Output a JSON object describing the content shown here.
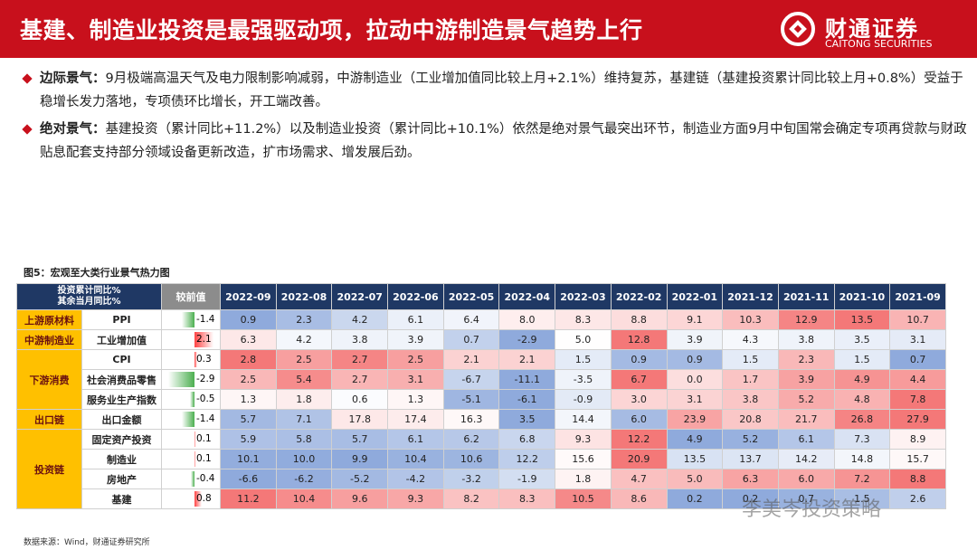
{
  "header": {
    "title": "基建、制造业投资是最强驱动项，拉动中游制造景气趋势上行",
    "logo_cn": "财通证券",
    "logo_en": "CAITONG SECURITIES"
  },
  "bullets": [
    {
      "label": "边际景气：",
      "text": "9月极端高温天气及电力限制影响减弱，中游制造业（工业增加值同比较上月+2.1%）维持复苏，基建链（基建投资累计同比较上月+0.8%）受益于稳增长发力落地，专项债环比增长，开工端改善。"
    },
    {
      "label": "绝对景气：",
      "text": "基建投资（累计同比+11.2%）以及制造业投资（累计同比+10.1%）依然是绝对景气最突出环节，制造业方面9月中旬国常会确定专项再贷款与财政贴息配套支持部分领域设备更新改造，扩市场需求、增发展后劲。"
    }
  ],
  "figure_title": "图5：宏观至大类行业景气热力图",
  "table": {
    "header_label": [
      "投资累计同比%",
      "其余当月同比%"
    ],
    "change_label": "较前值",
    "months": [
      "2022-09",
      "2022-08",
      "2022-07",
      "2022-06",
      "2022-05",
      "2022-04",
      "2022-03",
      "2022-02",
      "2022-01",
      "2021-12",
      "2021-11",
      "2021-10",
      "2021-09"
    ],
    "groups": [
      {
        "name": "上游原材料",
        "rows": [
          {
            "indicator": "PPI",
            "change": "-1.4",
            "values": [
              "0.9",
              "2.3",
              "4.2",
              "6.1",
              "6.4",
              "8.0",
              "8.3",
              "8.8",
              "9.1",
              "10.3",
              "12.9",
              "13.5",
              "10.7"
            ]
          }
        ]
      },
      {
        "name": "中游制造业",
        "rows": [
          {
            "indicator": "工业增加值",
            "change": "2.1",
            "values": [
              "6.3",
              "4.2",
              "3.8",
              "3.9",
              "0.7",
              "-2.9",
              "5.0",
              "12.8",
              "3.9",
              "4.3",
              "3.8",
              "3.5",
              "3.1"
            ]
          }
        ]
      },
      {
        "name": "下游消费",
        "rows": [
          {
            "indicator": "CPI",
            "change": "0.3",
            "values": [
              "2.8",
              "2.5",
              "2.7",
              "2.5",
              "2.1",
              "2.1",
              "1.5",
              "0.9",
              "0.9",
              "1.5",
              "2.3",
              "1.5",
              "0.7"
            ]
          },
          {
            "indicator": "社会消费品零售",
            "change": "-2.9",
            "values": [
              "2.5",
              "5.4",
              "2.7",
              "3.1",
              "-6.7",
              "-11.1",
              "-3.5",
              "6.7",
              "0.0",
              "1.7",
              "3.9",
              "4.9",
              "4.4"
            ]
          },
          {
            "indicator": "服务业生产指数",
            "change": "-0.5",
            "values": [
              "1.3",
              "1.8",
              "0.6",
              "1.3",
              "-5.1",
              "-6.1",
              "-0.9",
              "3.0",
              "3.1",
              "3.8",
              "5.2",
              "4.8",
              "7.8"
            ]
          }
        ]
      },
      {
        "name": "出口链",
        "rows": [
          {
            "indicator": "出口金额",
            "change": "-1.4",
            "values": [
              "5.7",
              "7.1",
              "17.8",
              "17.4",
              "16.3",
              "3.5",
              "14.4",
              "6.0",
              "23.9",
              "20.8",
              "21.7",
              "26.8",
              "27.9"
            ]
          }
        ]
      },
      {
        "name": "投资链",
        "rows": [
          {
            "indicator": "固定资产投资",
            "change": "0.1",
            "values": [
              "5.9",
              "5.8",
              "5.7",
              "6.1",
              "6.2",
              "6.8",
              "9.3",
              "12.2",
              "4.9",
              "5.2",
              "6.1",
              "7.3",
              "8.9"
            ]
          },
          {
            "indicator": "制造业",
            "change": "0.1",
            "values": [
              "10.1",
              "10.0",
              "9.9",
              "10.4",
              "10.6",
              "12.2",
              "15.6",
              "20.9",
              "13.5",
              "13.7",
              "14.2",
              "14.8",
              "15.7"
            ]
          },
          {
            "indicator": "房地产",
            "change": "-0.4",
            "values": [
              "-6.6",
              "-6.2",
              "-5.2",
              "-4.2",
              "-3.2",
              "-1.9",
              "1.8",
              "4.7",
              "5.0",
              "6.3",
              "6.0",
              "7.2",
              "8.8"
            ]
          },
          {
            "indicator": "基建",
            "change": "0.8",
            "values": [
              "11.2",
              "10.4",
              "9.6",
              "9.3",
              "8.2",
              "8.3",
              "10.5",
              "8.6",
              "0.2",
              "0.2",
              "0.7",
              "1.5",
              "2.6"
            ]
          }
        ]
      }
    ]
  },
  "source": "数据来源：Wind，财通证券研究所",
  "watermark": "李美岑投资策略"
}
